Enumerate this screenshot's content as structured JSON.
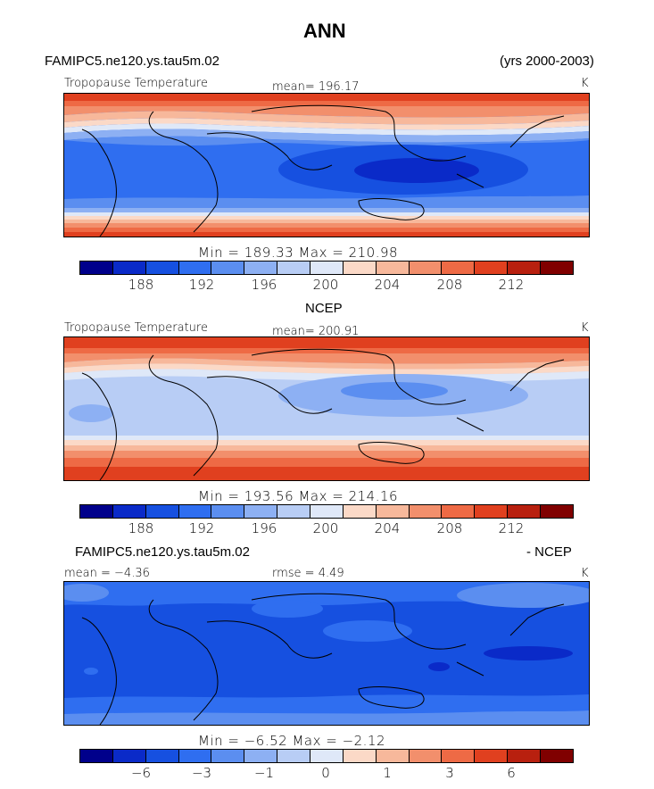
{
  "title": "ANN",
  "header_left": "FAMIPC5.ne120.ys.tau5m.02",
  "header_right": "(yrs 2000-2003)",
  "panels": [
    {
      "heading": "",
      "label_left": "Tropopause Temperature",
      "label_mid": "mean= 196.17",
      "unit": "K",
      "minmax": "Min = 189.33 Max = 210.98",
      "ticks": [
        "188",
        "192",
        "196",
        "200",
        "204",
        "208",
        "212"
      ]
    },
    {
      "heading": "NCEP",
      "label_left": "Tropopause Temperature",
      "label_mid": "mean= 200.91",
      "unit": "K",
      "minmax": "Min = 193.56 Max = 214.16",
      "ticks": [
        "188",
        "192",
        "196",
        "200",
        "204",
        "208",
        "212"
      ]
    },
    {
      "heading_left": "FAMIPC5.ne120.ys.tau5m.02",
      "heading_right": "- NCEP",
      "label_left": "mean =  −4.36",
      "label_mid": "rmse =    4.49",
      "unit": "K",
      "minmax": "Min =  −6.52 Max =  −2.12",
      "ticks": [
        "−6",
        "−3",
        "−1",
        "0",
        "1",
        "3",
        "6"
      ]
    }
  ],
  "colors": {
    "palette": [
      "#00008b",
      "#0a2ac8",
      "#1650e0",
      "#2f6ef0",
      "#5b8ef0",
      "#8db0f3",
      "#b8cdf5",
      "#dfe8f8",
      "#fbd9c7",
      "#f7b89b",
      "#f28f6c",
      "#ee6a45",
      "#e0401f",
      "#b8200f",
      "#800000"
    ]
  }
}
